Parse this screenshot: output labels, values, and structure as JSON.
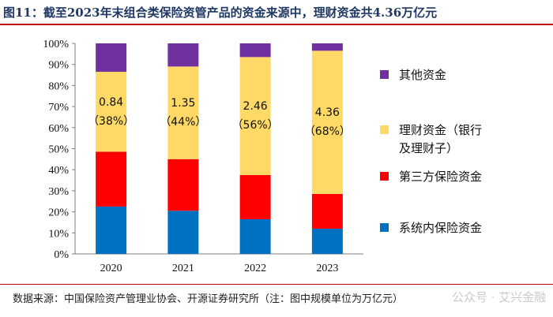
{
  "header": {
    "title": "图11：截至2023年末组合类保险资管产品的资金来源中，理财资金共4.36万亿元"
  },
  "footer": {
    "source": "数据来源：中国保险资产管理业协会、开源证券研究所（注：图中规模单位为万亿元）",
    "watermark": "公众号 · 艾兴金融"
  },
  "chart_data": {
    "type": "bar",
    "stacked": true,
    "categories": [
      "2020",
      "2021",
      "2022",
      "2023"
    ],
    "series": [
      {
        "name": "系统内保险资金",
        "color": "#0070c0",
        "values": [
          22.5,
          20.5,
          16.5,
          12
        ]
      },
      {
        "name": "第三方保险资金",
        "color": "#ff0000",
        "values": [
          26,
          24.5,
          21,
          16.5
        ]
      },
      {
        "name": "理财资金（银行及理财子）",
        "color": "#ffd966",
        "values": [
          38,
          44,
          56,
          68
        ],
        "labels": [
          "0.84",
          "1.35",
          "2.46",
          "4.36"
        ]
      },
      {
        "name": "其他资金",
        "color": "#7030a0",
        "values": [
          13.5,
          11,
          6.5,
          3.5
        ]
      }
    ],
    "legend": [
      {
        "label": "其他资金",
        "color": "#7030a0"
      },
      {
        "label": "理财资金（银行",
        "label2": "及理财子）",
        "color": "#ffd966"
      },
      {
        "label": "第三方保险资金",
        "color": "#ff0000"
      },
      {
        "label": "系统内保险资金",
        "color": "#0070c0"
      }
    ],
    "y_ticks": [
      "0%",
      "10%",
      "20%",
      "30%",
      "40%",
      "50%",
      "60%",
      "70%",
      "80%",
      "90%",
      "100%"
    ],
    "ylim": [
      0,
      100
    ],
    "legend_position": "right"
  }
}
